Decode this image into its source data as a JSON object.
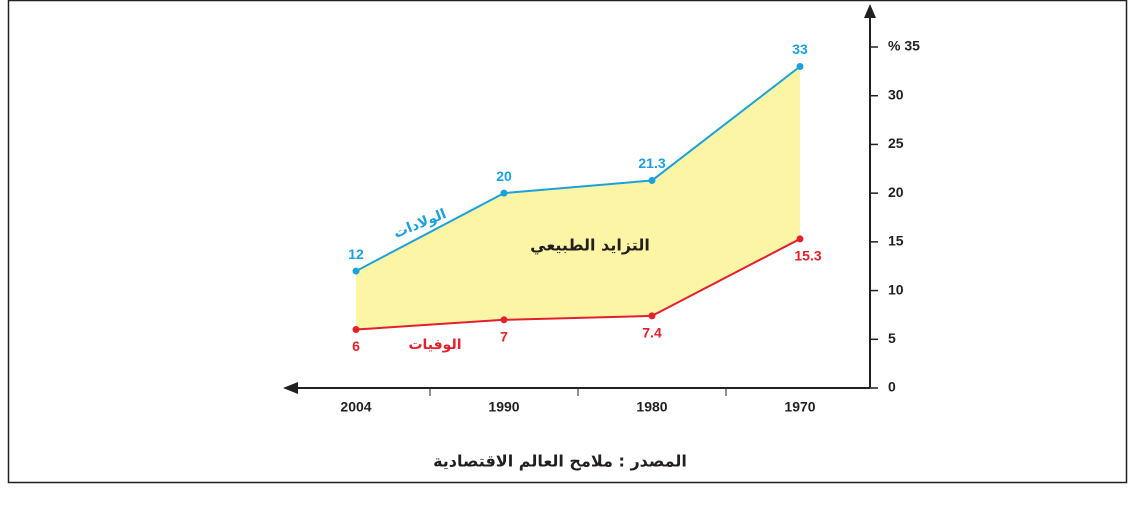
{
  "chart_data": {
    "type": "line",
    "categories": [
      "1970",
      "1980",
      "1990",
      "2004"
    ],
    "series": [
      {
        "name": "الولادات",
        "color": "#1ba1db",
        "values": [
          33,
          21.3,
          20,
          12
        ]
      },
      {
        "name": "الوفيات",
        "color": "#e3202b",
        "values": [
          15.3,
          7.4,
          7,
          6
        ]
      }
    ],
    "area_label": "التزايد الطبيعي",
    "area_color": "#fdf5a6",
    "ylim": [
      0,
      35
    ],
    "yticks": [
      0,
      5,
      10,
      15,
      20,
      25,
      30,
      {
        "value": 35,
        "label": "% 35"
      }
    ],
    "source": "المصدر : ملامح العالم الاقتصادية"
  }
}
